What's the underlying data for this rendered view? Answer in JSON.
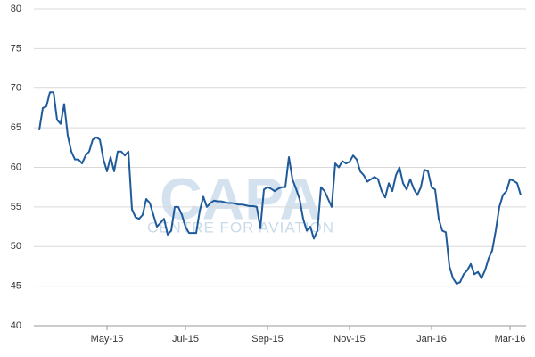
{
  "chart_data": {
    "type": "line",
    "watermark": "CAPA",
    "watermark_subtitle": "CENTRE FOR AVIATION",
    "categories": [
      null,
      null,
      null,
      null,
      null,
      null,
      null,
      null,
      null,
      null,
      null,
      null,
      null,
      null,
      null,
      null,
      null,
      null,
      null,
      "May-15",
      null,
      null,
      null,
      null,
      null,
      null,
      null,
      null,
      null,
      null,
      null,
      null,
      null,
      null,
      null,
      null,
      null,
      null,
      null,
      null,
      null,
      "Jul-15",
      null,
      null,
      null,
      null,
      null,
      null,
      null,
      null,
      null,
      null,
      null,
      null,
      null,
      null,
      null,
      null,
      null,
      null,
      null,
      null,
      null,
      null,
      "Sep-15",
      null,
      null,
      null,
      null,
      null,
      null,
      null,
      null,
      null,
      null,
      null,
      null,
      null,
      null,
      null,
      null,
      null,
      null,
      null,
      null,
      null,
      null,
      "Nov-15",
      null,
      null,
      null,
      null,
      null,
      null,
      null,
      null,
      null,
      null,
      null,
      null,
      null,
      null,
      null,
      null,
      null,
      null,
      null,
      null,
      null,
      null,
      "Jan-16",
      null,
      null,
      null,
      null,
      null,
      null,
      null,
      null,
      null,
      null,
      null,
      null,
      null,
      null,
      null,
      null,
      null,
      null,
      null,
      null,
      null,
      "Mar-16",
      null,
      null,
      null
    ],
    "series": [
      {
        "name": null,
        "color": "#1f5a9a",
        "values": [
          64.7,
          67.5,
          67.7,
          69.5,
          69.5,
          66,
          65.5,
          68,
          64,
          62,
          61,
          61,
          60.5,
          61.5,
          62,
          63.5,
          63.8,
          63.5,
          61,
          59.5,
          61.3,
          59.5,
          62,
          62,
          61.5,
          62,
          54.7,
          53.7,
          53.5,
          54,
          56,
          55.5,
          54,
          52.5,
          53,
          53.5,
          51.5,
          52,
          55,
          55,
          54,
          52.5,
          51.7,
          51.7,
          51.7,
          54.5,
          56.3,
          55,
          55.5,
          55.8,
          55.7,
          55.7,
          55.6,
          55.5,
          55.5,
          55.4,
          55.3,
          55.3,
          55.2,
          55.1,
          55.1,
          55,
          52.3,
          57.2,
          57.5,
          57.3,
          57,
          57.3,
          57.5,
          57.5,
          61.3,
          58.5,
          57.3,
          56,
          53.5,
          52,
          52.5,
          51,
          52,
          57.5,
          57,
          56,
          55,
          60.5,
          60,
          60.8,
          60.5,
          60.7,
          61.5,
          61,
          59.5,
          59,
          58.2,
          58.5,
          58.8,
          58.5,
          57,
          56.2,
          58,
          57,
          59,
          60,
          58,
          57.2,
          58.5,
          57.3,
          56.5,
          57.5,
          59.7,
          59.5,
          57.5,
          57.2,
          53.5,
          52,
          51.8,
          47.5,
          46,
          45.3,
          45.5,
          46.5,
          47,
          47.8,
          46.5,
          46.8,
          46,
          47,
          48.5,
          49.5,
          52,
          55,
          56.5,
          57,
          58.5,
          58.3,
          58,
          56.5
        ]
      }
    ],
    "ylim": [
      40,
      80
    ],
    "yticks": [
      40,
      45,
      50,
      55,
      60,
      65,
      70,
      75,
      80
    ],
    "grid": true
  }
}
